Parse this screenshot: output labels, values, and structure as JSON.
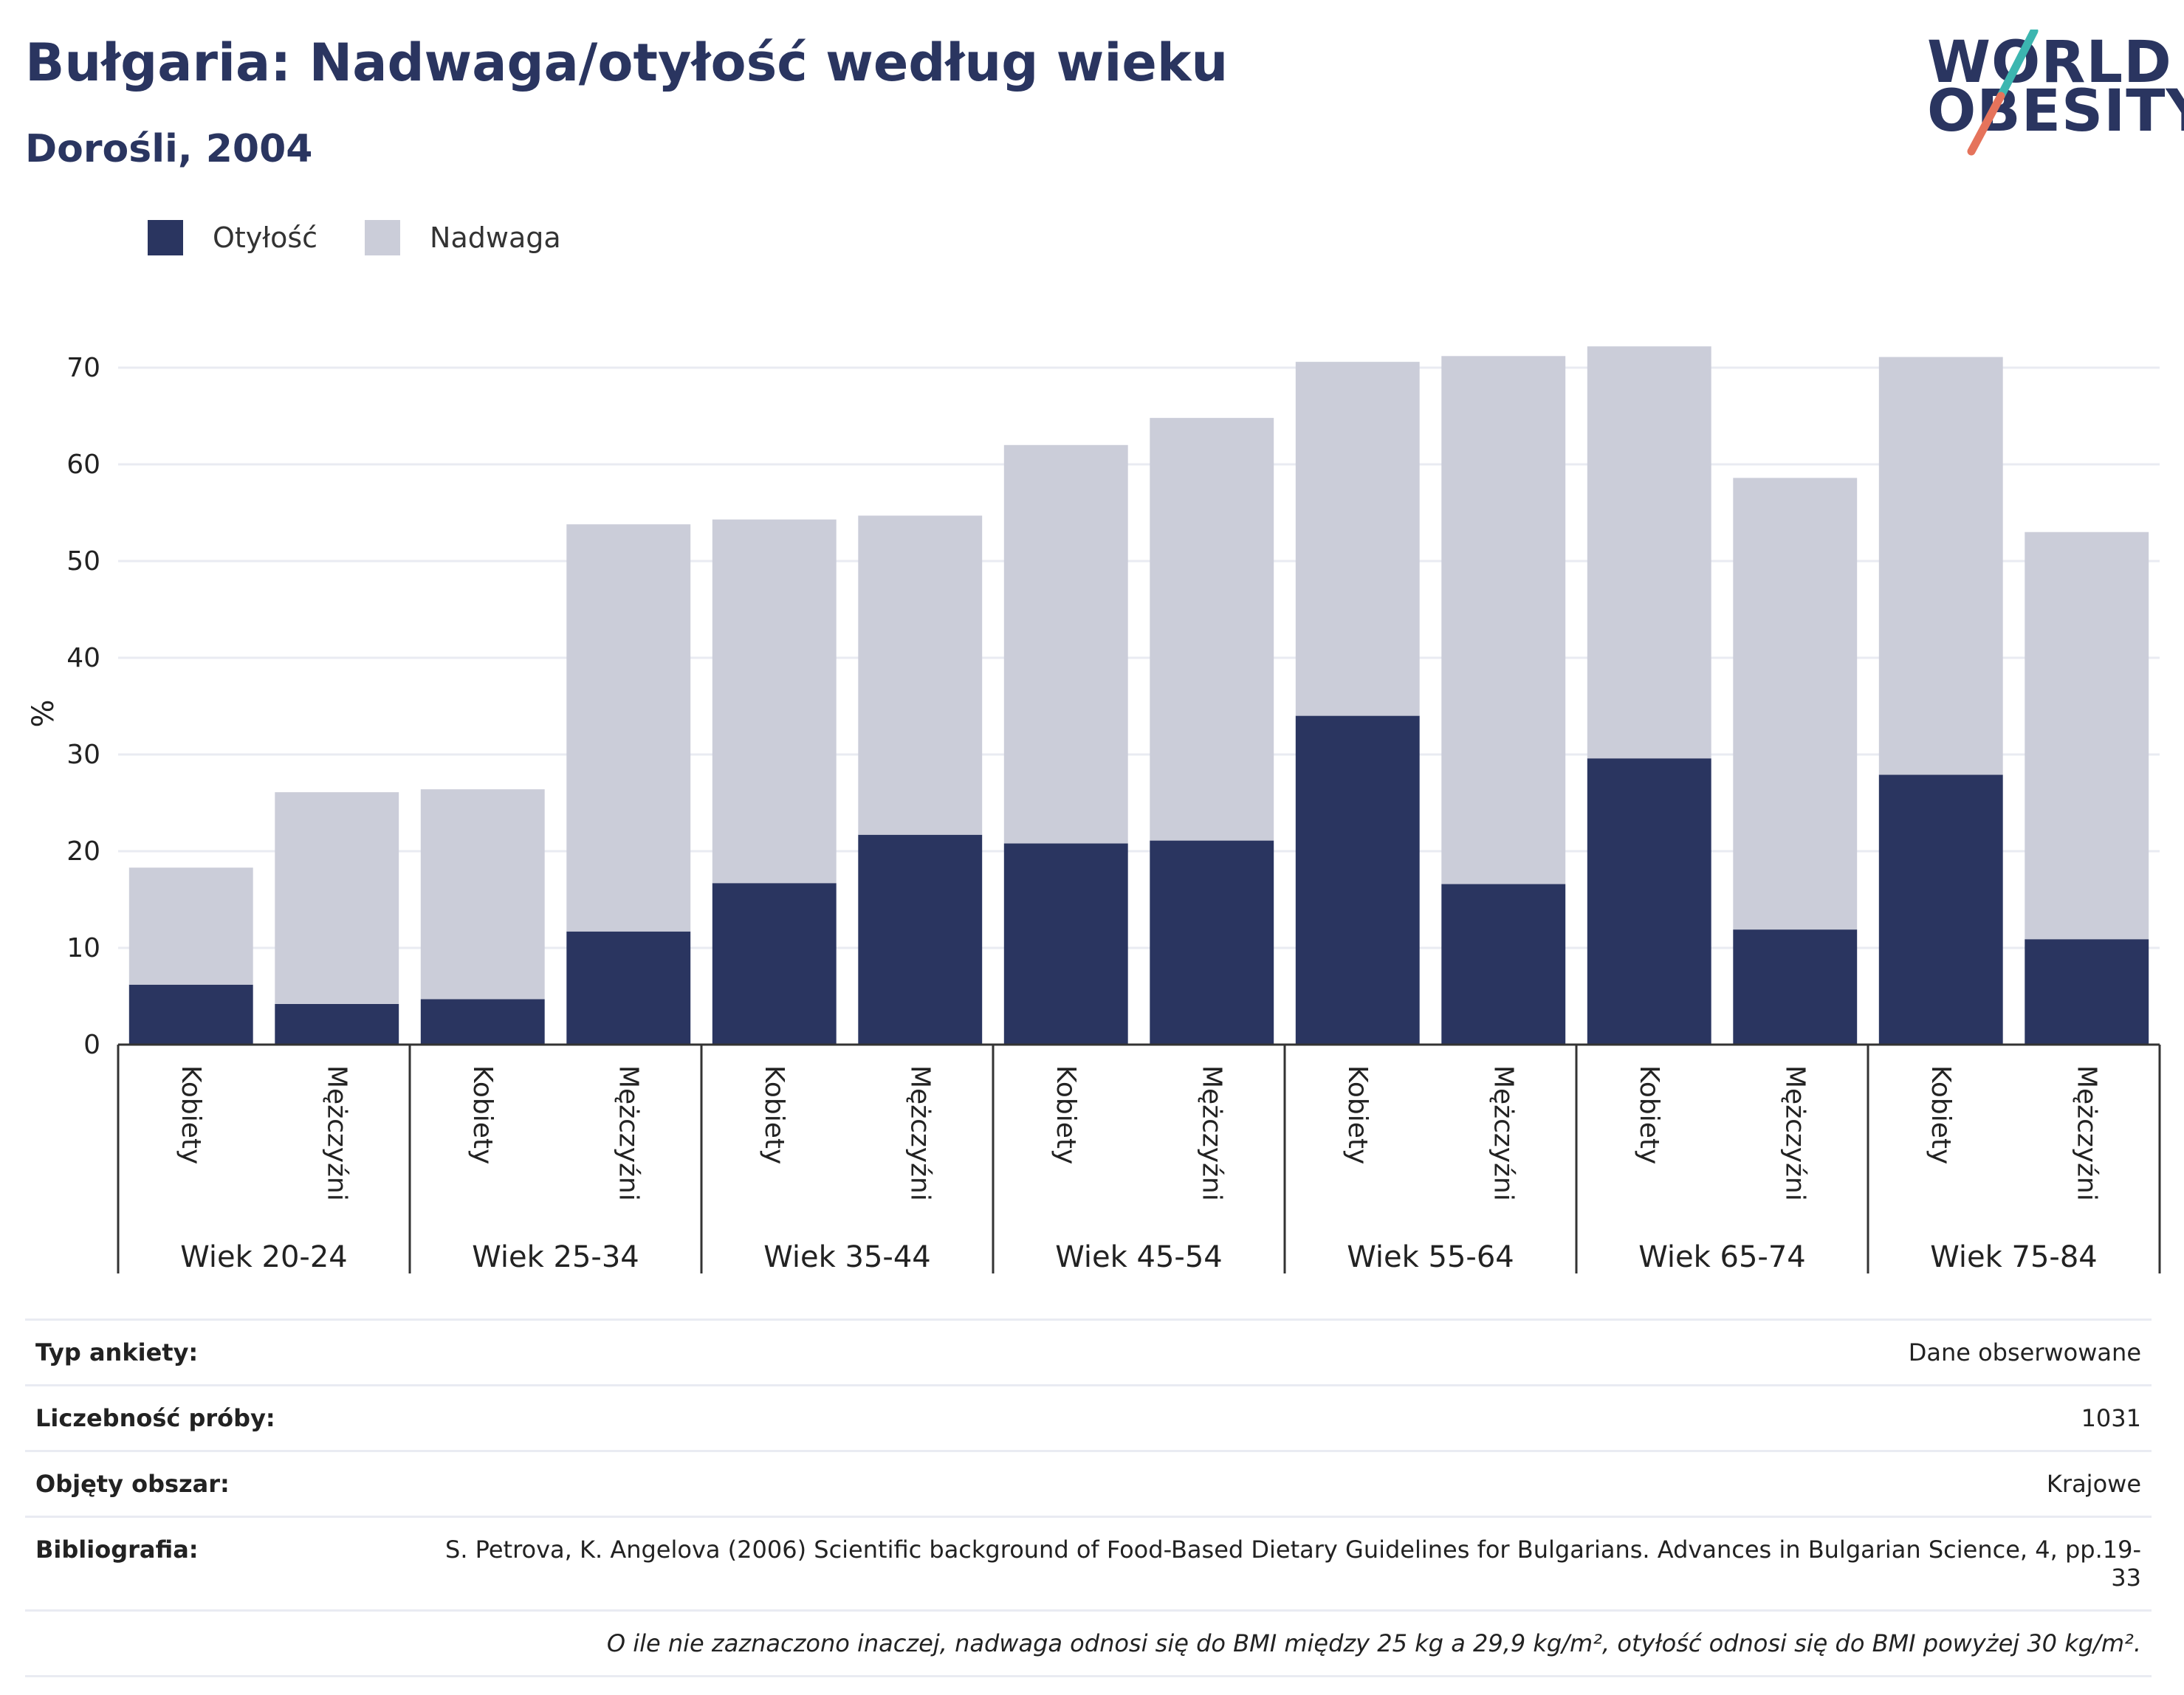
{
  "header": {
    "title": "Bułgaria: Nadwaga/otyłość według wieku",
    "subtitle": "Dorośli, 2004"
  },
  "logo": {
    "line1": "WORLD",
    "line2": "OBESITY",
    "colors": {
      "teal": "#3cb6b0",
      "coral": "#e5735b"
    }
  },
  "legend": {
    "items": [
      {
        "label": "Otyłość",
        "color": "#2a3560"
      },
      {
        "label": "Nadwaga",
        "color": "#cbcdd9"
      }
    ]
  },
  "chart_data": {
    "type": "bar",
    "stacked": true,
    "ylabel": "%",
    "ylim": [
      0,
      75
    ],
    "yticks": [
      0,
      10,
      20,
      30,
      40,
      50,
      60,
      70
    ],
    "grid": true,
    "legend_position": "top-left",
    "groups": [
      "Wiek 20-24",
      "Wiek 25-34",
      "Wiek 35-44",
      "Wiek 45-54",
      "Wiek 55-64",
      "Wiek 65-74",
      "Wiek 75-84"
    ],
    "subcategories": [
      "Kobiety",
      "Mężczyźni"
    ],
    "series": [
      {
        "name": "Otyłość",
        "color": "#2a3560",
        "values": [
          6.2,
          4.2,
          4.7,
          11.7,
          16.7,
          21.7,
          20.8,
          21.1,
          34.0,
          16.6,
          29.6,
          11.9,
          27.9,
          10.9
        ]
      },
      {
        "name": "Nadwaga",
        "color": "#cbcdd9",
        "values": [
          12.1,
          21.9,
          21.7,
          42.1,
          37.6,
          33.0,
          41.2,
          43.7,
          36.6,
          54.6,
          42.6,
          46.7,
          43.2,
          42.1
        ]
      }
    ]
  },
  "info": {
    "rows": [
      {
        "label": "Typ ankiety:",
        "value": "Dane obserwowane"
      },
      {
        "label": "Liczebność próby:",
        "value": "1031"
      },
      {
        "label": "Objęty obszar:",
        "value": "Krajowe"
      },
      {
        "label": "Bibliografia:",
        "value": "S. Petrova, K. Angelova (2006) Scientific background of Food-Based Dietary Guidelines for Bulgarians. Advances in Bulgarian Science, 4, pp.19-33"
      }
    ],
    "note": "O ile nie zaznaczono inaczej, nadwaga odnosi się do BMI między 25 kg a 29,9 kg/m², otyłość odnosi się do BMI powyżej 30 kg/m²."
  }
}
